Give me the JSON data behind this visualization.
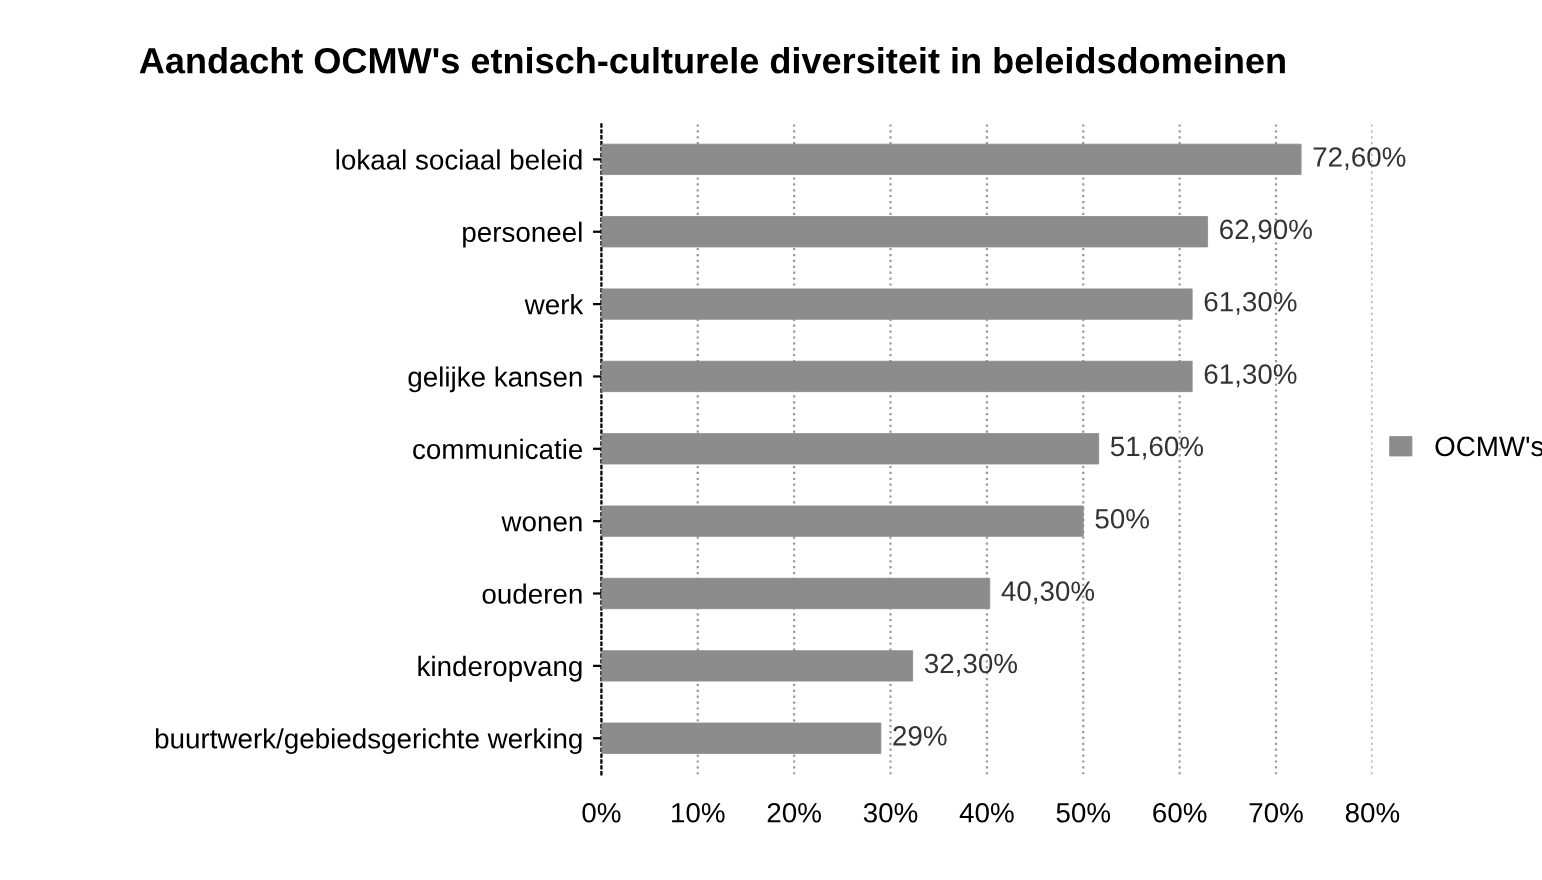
{
  "chart_data": {
    "type": "bar",
    "orientation": "horizontal",
    "title": "Aandacht OCMW's etnisch-culturele diversiteit in beleidsdomeinen",
    "categories": [
      "lokaal sociaal beleid",
      "personeel",
      "werk",
      "gelijke kansen",
      "communicatie",
      "wonen",
      "ouderen",
      "kinderopvang",
      "buurtwerk/gebiedsgerichte werking"
    ],
    "series": [
      {
        "name": "OCMW's",
        "color": "#8c8c8c",
        "values": [
          72.6,
          62.9,
          61.3,
          61.3,
          51.6,
          50,
          40.3,
          32.3,
          29
        ],
        "value_labels": [
          "72,60%",
          "62,90%",
          "61,30%",
          "61,30%",
          "51,60%",
          "50%",
          "40,30%",
          "32,30%",
          "29%"
        ]
      }
    ],
    "xlim": [
      0,
      80
    ],
    "xticks": [
      {
        "value": 0,
        "label": "0%"
      },
      {
        "value": 10,
        "label": "10%"
      },
      {
        "value": 20,
        "label": "20%"
      },
      {
        "value": 30,
        "label": "30%"
      },
      {
        "value": 40,
        "label": "40%"
      },
      {
        "value": 50,
        "label": "50%"
      },
      {
        "value": 60,
        "label": "60%"
      },
      {
        "value": 70,
        "label": "70%"
      },
      {
        "value": 80,
        "label": "80%"
      }
    ],
    "grid": "x",
    "legend": "right"
  }
}
